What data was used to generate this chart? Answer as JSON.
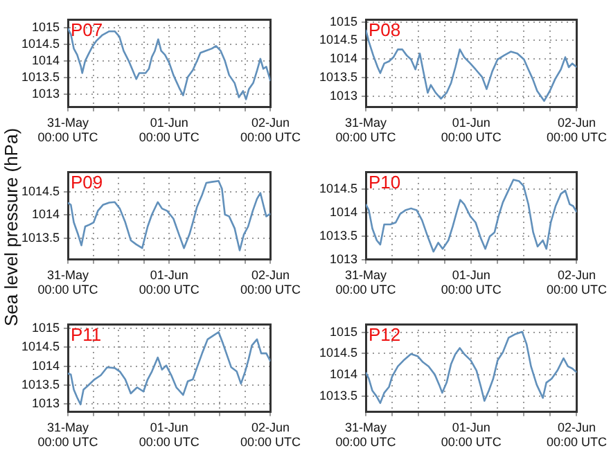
{
  "chart_data": [
    {
      "type": "line",
      "title": "P07",
      "x": [
        "--05-31T00:00",
        "--05-31T00:42",
        "--05-31T01:24",
        "--05-31T02:12",
        "--05-31T03:06",
        "--05-31T03:24",
        "--05-31T04:06",
        "--05-31T04:48",
        "--05-31T05:48",
        "--05-31T06:48",
        "--05-31T08:06",
        "--05-31T09:48",
        "--05-31T11:06",
        "--05-31T12:12",
        "--05-31T13:12",
        "--05-31T14:24",
        "--05-31T15:24",
        "--05-31T16:12",
        "--05-31T16:54",
        "--05-31T18:24",
        "--05-31T19:12",
        "--05-31T19:54",
        "--05-31T20:36",
        "--05-31T21:24",
        "--05-31T22:06",
        "--05-31T23:00",
        "--06-01T00:00",
        "--06-01T01:00",
        "--06-01T02:30",
        "--06-01T03:18",
        "--06-01T04:24",
        "--06-01T05:36",
        "--06-01T06:36",
        "--06-01T07:24",
        "--06-01T08:36",
        "--06-01T10:06",
        "--06-01T11:06",
        "--06-01T12:12",
        "--06-01T13:12",
        "--06-01T14:12",
        "--06-01T15:30",
        "--06-01T16:30",
        "--06-01T17:30",
        "--06-01T18:12",
        "--06-01T18:54",
        "--06-01T19:54",
        "--06-01T20:48",
        "--06-01T21:36",
        "--06-01T22:18",
        "--06-01T23:00",
        "--06-02T00:00"
      ],
      "series": [
        {
          "color": "#6190bb",
          "values": [
            1014.98,
            1014.8,
            1014.37,
            1014.18,
            1013.82,
            1013.63,
            1014.0,
            1014.18,
            1014.43,
            1014.61,
            1014.77,
            1014.89,
            1014.89,
            1014.73,
            1014.3,
            1014.0,
            1013.7,
            1013.45,
            1013.63,
            1013.63,
            1013.76,
            1014.12,
            1014.3,
            1014.65,
            1014.3,
            1014.18,
            1013.94,
            1013.57,
            1013.15,
            1012.96,
            1013.51,
            1013.72,
            1014.0,
            1014.24,
            1014.3,
            1014.37,
            1014.45,
            1014.3,
            1014.0,
            1013.57,
            1013.33,
            1012.9,
            1013.09,
            1012.84,
            1013.15,
            1013.33,
            1013.7,
            1014.06,
            1013.76,
            1013.82,
            1013.39
          ]
        }
      ],
      "xlim": [
        "--05-31T00:00",
        "--06-02T00:00"
      ],
      "xticks": [
        {
          "value": "--05-31T00:00",
          "label": "31-May\n00:00 UTC"
        },
        {
          "value": "--05-31T06:00",
          "label": null
        },
        {
          "value": "--05-31T12:00",
          "label": null
        },
        {
          "value": "--05-31T18:00",
          "label": null
        },
        {
          "value": "--06-01T00:00",
          "label": "01-Jun\n00:00 UTC"
        },
        {
          "value": "--06-01T06:00",
          "label": null
        },
        {
          "value": "--06-01T12:00",
          "label": null
        },
        {
          "value": "--06-01T18:00",
          "label": null
        },
        {
          "value": "--06-02T00:00",
          "label": "02-Jun\n00:00 UTC"
        }
      ],
      "ylim": [
        1012.6,
        1015.25
      ],
      "yticks": [
        1013,
        1013.5,
        1014,
        1014.5,
        1015
      ],
      "grid": true
    },
    {
      "type": "line",
      "title": "P08",
      "x": [
        "--05-31T00:00",
        "--05-31T00:42",
        "--05-31T01:42",
        "--05-31T02:42",
        "--05-31T03:18",
        "--05-31T04:12",
        "--05-31T05:18",
        "--05-31T06:18",
        "--05-31T07:18",
        "--05-31T08:18",
        "--05-31T09:18",
        "--05-31T10:18",
        "--05-31T11:18",
        "--05-31T12:18",
        "--05-31T13:06",
        "--05-31T14:06",
        "--05-31T14:48",
        "--05-31T15:54",
        "--05-31T17:06",
        "--05-31T18:24",
        "--05-31T19:24",
        "--05-31T20:24",
        "--05-31T21:24",
        "--05-31T22:24",
        "--05-31T23:48",
        "--06-01T01:00",
        "--06-01T02:30",
        "--06-01T03:30",
        "--06-01T04:48",
        "--06-01T06:00",
        "--06-01T07:30",
        "--06-01T09:00",
        "--06-01T10:30",
        "--06-01T12:00",
        "--06-01T13:00",
        "--06-01T14:00",
        "--06-01T15:00",
        "--06-01T16:36",
        "--06-01T17:54",
        "--06-01T19:06",
        "--06-01T20:24",
        "--06-01T21:24",
        "--06-01T22:12",
        "--06-01T23:00",
        "--06-02T00:00"
      ],
      "series": [
        {
          "color": "#6190bb",
          "values": [
            1014.79,
            1014.47,
            1014.1,
            1013.78,
            1013.62,
            1013.88,
            1013.94,
            1014.05,
            1014.26,
            1014.26,
            1014.1,
            1013.99,
            1013.72,
            1014.15,
            1013.67,
            1013.09,
            1013.3,
            1013.09,
            1012.93,
            1013.09,
            1013.35,
            1013.78,
            1014.26,
            1014.05,
            1013.88,
            1013.72,
            1013.51,
            1013.19,
            1013.67,
            1013.99,
            1014.1,
            1014.2,
            1014.15,
            1013.99,
            1013.72,
            1013.46,
            1013.14,
            1012.87,
            1013.14,
            1013.46,
            1013.72,
            1014.05,
            1013.78,
            1013.88,
            1013.78
          ]
        }
      ],
      "xlim": [
        "--05-31T00:00",
        "--06-02T00:00"
      ],
      "xticks": [
        {
          "value": "--05-31T00:00",
          "label": "31-May\n00:00 UTC"
        },
        {
          "value": "--05-31T06:00",
          "label": null
        },
        {
          "value": "--05-31T12:00",
          "label": null
        },
        {
          "value": "--05-31T18:00",
          "label": null
        },
        {
          "value": "--06-01T00:00",
          "label": "01-Jun\n00:00 UTC"
        },
        {
          "value": "--06-01T06:00",
          "label": null
        },
        {
          "value": "--06-01T12:00",
          "label": null
        },
        {
          "value": "--06-01T18:00",
          "label": null
        },
        {
          "value": "--06-02T00:00",
          "label": "02-Jun\n00:00 UTC"
        }
      ],
      "ylim": [
        1012.7,
        1015.07
      ],
      "yticks": [
        1013,
        1013.5,
        1014,
        1014.5,
        1015
      ],
      "grid": true
    },
    {
      "type": "line",
      "title": "P09",
      "ylabel": "Sea level pressure (hPa)",
      "x": [
        "--05-31T00:00",
        "--05-31T00:42",
        "--05-31T01:24",
        "--05-31T02:24",
        "--05-31T03:12",
        "--05-31T04:06",
        "--05-31T05:06",
        "--05-31T06:06",
        "--05-31T07:06",
        "--05-31T08:18",
        "--05-31T09:48",
        "--05-31T11:06",
        "--05-31T12:18",
        "--05-31T13:36",
        "--05-31T14:54",
        "--05-31T16:12",
        "--05-31T17:36",
        "--05-31T18:54",
        "--05-31T19:54",
        "--05-31T21:18",
        "--05-31T22:18",
        "--05-31T23:30",
        "--06-01T01:00",
        "--06-01T02:30",
        "--06-01T03:30",
        "--06-01T04:48",
        "--06-01T05:36",
        "--06-01T06:36",
        "--06-01T07:48",
        "--06-01T08:48",
        "--06-01T10:06",
        "--06-01T11:42",
        "--06-01T12:30",
        "--06-01T13:12",
        "--06-01T14:12",
        "--06-01T15:30",
        "--06-01T16:42",
        "--06-01T17:42",
        "--06-01T18:42",
        "--06-01T19:48",
        "--06-01T20:48",
        "--06-01T21:36",
        "--06-01T22:18",
        "--06-01T23:00",
        "--06-02T00:00"
      ],
      "series": [
        {
          "color": "#6190bb",
          "values": [
            1014.27,
            1014.22,
            1013.84,
            1013.58,
            1013.34,
            1013.75,
            1013.79,
            1013.84,
            1014.09,
            1014.22,
            1014.27,
            1014.28,
            1014.14,
            1013.84,
            1013.45,
            1013.36,
            1013.28,
            1013.75,
            1014.01,
            1014.28,
            1014.14,
            1014.09,
            1013.92,
            1013.53,
            1013.28,
            1013.58,
            1013.84,
            1014.18,
            1014.44,
            1014.7,
            1014.72,
            1014.74,
            1014.57,
            1014.01,
            1013.97,
            1013.71,
            1013.23,
            1013.58,
            1013.75,
            1014.09,
            1014.35,
            1014.48,
            1014.22,
            1013.97,
            1014.03
          ]
        }
      ],
      "xlim": [
        "--05-31T00:00",
        "--06-02T00:00"
      ],
      "xticks": [
        {
          "value": "--05-31T00:00",
          "label": "31-May\n00:00 UTC"
        },
        {
          "value": "--05-31T06:00",
          "label": null
        },
        {
          "value": "--05-31T12:00",
          "label": null
        },
        {
          "value": "--05-31T18:00",
          "label": null
        },
        {
          "value": "--06-01T00:00",
          "label": "01-Jun\n00:00 UTC"
        },
        {
          "value": "--06-01T06:00",
          "label": null
        },
        {
          "value": "--06-01T12:00",
          "label": null
        },
        {
          "value": "--06-01T18:00",
          "label": null
        },
        {
          "value": "--06-02T00:00",
          "label": "02-Jun\n00:00 UTC"
        }
      ],
      "ylim": [
        1013.03,
        1014.94
      ],
      "yticks": [
        1013.5,
        1014,
        1014.5
      ],
      "grid": true
    },
    {
      "type": "line",
      "title": "P10",
      "x": [
        "--05-31T00:00",
        "--05-31T00:42",
        "--05-31T01:30",
        "--05-31T02:30",
        "--05-31T03:18",
        "--05-31T04:12",
        "--05-31T05:36",
        "--05-31T06:48",
        "--05-31T07:48",
        "--05-31T09:00",
        "--05-31T10:18",
        "--05-31T11:36",
        "--05-31T12:48",
        "--05-31T14:06",
        "--05-31T15:24",
        "--05-31T16:30",
        "--05-31T17:30",
        "--05-31T18:48",
        "--05-31T19:48",
        "--05-31T20:48",
        "--05-31T21:30",
        "--05-31T22:24",
        "--05-31T23:48",
        "--06-01T01:00",
        "--06-01T02:12",
        "--06-01T03:12",
        "--06-01T04:12",
        "--06-01T05:18",
        "--06-01T06:12",
        "--06-01T07:12",
        "--06-01T08:18",
        "--06-01T09:36",
        "--06-01T10:54",
        "--06-01T11:54",
        "--06-01T13:00",
        "--06-01T14:06",
        "--06-01T15:06",
        "--06-01T16:18",
        "--06-01T17:06",
        "--06-01T18:06",
        "--06-01T19:12",
        "--06-01T20:24",
        "--06-01T21:24",
        "--06-01T22:24",
        "--06-01T23:12",
        "--06-02T00:00"
      ],
      "series": [
        {
          "color": "#6190bb",
          "values": [
            1014.18,
            1014.05,
            1013.66,
            1013.41,
            1013.32,
            1013.75,
            1013.75,
            1013.79,
            1013.97,
            1014.05,
            1014.09,
            1014.05,
            1013.84,
            1013.49,
            1013.17,
            1013.36,
            1013.23,
            1013.41,
            1013.71,
            1014.05,
            1014.27,
            1014.18,
            1013.92,
            1013.79,
            1013.45,
            1013.23,
            1013.49,
            1013.58,
            1013.92,
            1014.22,
            1014.44,
            1014.7,
            1014.67,
            1014.57,
            1014.18,
            1013.58,
            1013.28,
            1013.41,
            1013.23,
            1013.79,
            1014.14,
            1014.4,
            1014.47,
            1014.18,
            1014.14,
            1014.01
          ]
        }
      ],
      "xlim": [
        "--05-31T00:00",
        "--06-02T00:00"
      ],
      "xticks": [
        {
          "value": "--05-31T00:00",
          "label": "31-May\n00:00 UTC"
        },
        {
          "value": "--05-31T06:00",
          "label": null
        },
        {
          "value": "--05-31T12:00",
          "label": null
        },
        {
          "value": "--05-31T18:00",
          "label": null
        },
        {
          "value": "--06-01T00:00",
          "label": "01-Jun\n00:00 UTC"
        },
        {
          "value": "--06-01T06:00",
          "label": null
        },
        {
          "value": "--06-01T12:00",
          "label": null
        },
        {
          "value": "--06-01T18:00",
          "label": null
        },
        {
          "value": "--06-02T00:00",
          "label": "02-Jun\n00:00 UTC"
        }
      ],
      "ylim": [
        1013,
        1014.87
      ],
      "yticks": [
        1013,
        1013.5,
        1014,
        1014.5
      ],
      "grid": true
    },
    {
      "type": "line",
      "title": "P11",
      "x": [
        "--05-31T00:00",
        "--05-31T00:42",
        "--05-31T01:24",
        "--05-31T02:12",
        "--05-31T03:00",
        "--05-31T03:42",
        "--05-31T04:48",
        "--05-31T06:18",
        "--05-31T07:48",
        "--05-31T09:18",
        "--05-31T11:06",
        "--05-31T12:18",
        "--05-31T13:36",
        "--05-31T14:54",
        "--05-31T16:24",
        "--05-31T17:54",
        "--05-31T18:54",
        "--05-31T19:54",
        "--05-31T21:18",
        "--05-31T22:18",
        "--05-31T23:18",
        "--06-01T00:30",
        "--06-01T01:42",
        "--06-01T03:18",
        "--06-01T04:24",
        "--06-01T05:36",
        "--06-01T06:36",
        "--06-01T07:48",
        "--06-01T09:06",
        "--06-01T10:36",
        "--06-01T11:42",
        "--06-01T12:42",
        "--06-01T13:42",
        "--06-01T14:42",
        "--06-01T16:00",
        "--06-01T17:00",
        "--06-01T18:00",
        "--06-01T18:48",
        "--06-01T19:36",
        "--06-01T20:48",
        "--06-01T21:48",
        "--06-01T23:00",
        "--06-02T00:00"
      ],
      "series": [
        {
          "color": "#6190bb",
          "values": [
            1013.81,
            1013.78,
            1013.38,
            1013.17,
            1012.99,
            1013.38,
            1013.49,
            1013.65,
            1013.76,
            1013.97,
            1013.95,
            1013.86,
            1013.65,
            1013.28,
            1013.44,
            1013.33,
            1013.65,
            1013.86,
            1014.23,
            1013.91,
            1014.02,
            1013.76,
            1013.44,
            1013.24,
            1013.6,
            1013.65,
            1013.97,
            1014.34,
            1014.71,
            1014.82,
            1014.9,
            1014.61,
            1014.29,
            1013.97,
            1013.86,
            1013.54,
            1013.86,
            1014.18,
            1014.55,
            1014.71,
            1014.34,
            1014.34,
            1014.13
          ]
        }
      ],
      "xlim": [
        "--05-31T00:00",
        "--06-02T00:00"
      ],
      "xticks": [
        {
          "value": "--05-31T00:00",
          "label": "31-May\n00:00 UTC"
        },
        {
          "value": "--05-31T06:00",
          "label": null
        },
        {
          "value": "--05-31T12:00",
          "label": null
        },
        {
          "value": "--05-31T18:00",
          "label": null
        },
        {
          "value": "--06-01T00:00",
          "label": "01-Jun\n00:00 UTC"
        },
        {
          "value": "--06-01T06:00",
          "label": null
        },
        {
          "value": "--06-01T12:00",
          "label": null
        },
        {
          "value": "--06-01T18:00",
          "label": null
        },
        {
          "value": "--06-02T00:00",
          "label": "02-Jun\n00:00 UTC"
        }
      ],
      "ylim": [
        1012.79,
        1015.11
      ],
      "yticks": [
        1013,
        1013.5,
        1014,
        1014.5,
        1015
      ],
      "grid": true
    },
    {
      "type": "line",
      "title": "P12",
      "x": [
        "--05-31T00:00",
        "--05-31T00:42",
        "--05-31T01:30",
        "--05-31T02:30",
        "--05-31T03:18",
        "--05-31T04:12",
        "--05-31T05:18",
        "--05-31T06:00",
        "--05-31T07:18",
        "--05-31T08:36",
        "--05-31T10:18",
        "--05-31T11:48",
        "--05-31T13:00",
        "--05-31T14:18",
        "--05-31T15:42",
        "--05-31T16:42",
        "--05-31T17:24",
        "--05-31T18:24",
        "--05-31T19:24",
        "--05-31T20:24",
        "--05-31T21:24",
        "--05-31T22:24",
        "--05-31T23:54",
        "--06-01T01:12",
        "--06-01T02:12",
        "--06-01T03:00",
        "--06-01T04:00",
        "--06-01T05:00",
        "--06-01T06:00",
        "--06-01T07:12",
        "--06-01T08:30",
        "--06-01T10:06",
        "--06-01T11:36",
        "--06-01T12:36",
        "--06-01T13:36",
        "--06-01T14:54",
        "--06-01T16:18",
        "--06-01T17:06",
        "--06-01T18:18",
        "--06-01T19:36",
        "--06-01T21:00",
        "--06-01T22:00",
        "--06-01T23:00",
        "--06-02T00:00"
      ],
      "series": [
        {
          "color": "#6190bb",
          "values": [
            1014.06,
            1013.91,
            1013.63,
            1013.49,
            1013.34,
            1013.58,
            1013.72,
            1013.96,
            1014.2,
            1014.34,
            1014.49,
            1014.44,
            1014.3,
            1014.2,
            1014.01,
            1013.77,
            1013.58,
            1013.82,
            1014.25,
            1014.49,
            1014.63,
            1014.49,
            1014.34,
            1014.1,
            1013.72,
            1013.39,
            1013.63,
            1013.91,
            1014.34,
            1014.53,
            1014.87,
            1014.96,
            1015.01,
            1014.72,
            1014.2,
            1013.77,
            1013.46,
            1013.82,
            1013.91,
            1014.1,
            1014.39,
            1014.2,
            1014.15,
            1014.06
          ]
        }
      ],
      "xlim": [
        "--05-31T00:00",
        "--06-02T00:00"
      ],
      "xticks": [
        {
          "value": "--05-31T00:00",
          "label": "31-May\n00:00 UTC"
        },
        {
          "value": "--05-31T06:00",
          "label": null
        },
        {
          "value": "--05-31T12:00",
          "label": null
        },
        {
          "value": "--05-31T18:00",
          "label": null
        },
        {
          "value": "--06-01T00:00",
          "label": "01-Jun\n00:00 UTC"
        },
        {
          "value": "--06-01T06:00",
          "label": null
        },
        {
          "value": "--06-01T12:00",
          "label": null
        },
        {
          "value": "--06-01T18:00",
          "label": null
        },
        {
          "value": "--06-02T00:00",
          "label": "02-Jun\n00:00 UTC"
        }
      ],
      "ylim": [
        1013.13,
        1015.19
      ],
      "yticks": [
        1013.5,
        1014,
        1014.5,
        1015
      ],
      "grid": true
    }
  ]
}
